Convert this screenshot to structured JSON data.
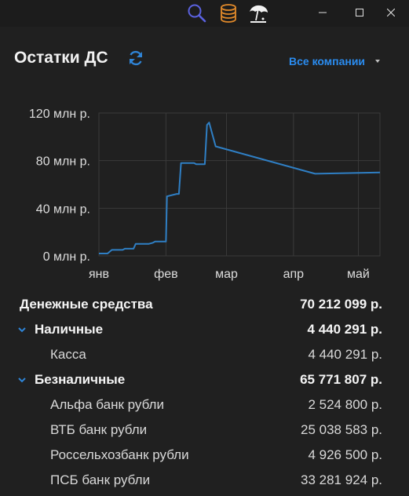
{
  "window": {
    "icons": [
      "search-icon",
      "database-icon",
      "beach-umbrella-icon"
    ],
    "controls": [
      "minimize-icon",
      "maximize-icon",
      "close-icon"
    ]
  },
  "header": {
    "title": "Остатки ДС",
    "company_filter": "Все компании"
  },
  "chart_data": {
    "type": "line",
    "ylim": [
      0,
      120
    ],
    "y_ticks": [
      "0 млн р.",
      "40 млн р.",
      "80 млн р.",
      "120 млн р."
    ],
    "y_tick_values": [
      0,
      40,
      80,
      120
    ],
    "x_ticks": [
      "янв",
      "фев",
      "мар",
      "апр",
      "май"
    ],
    "x_tick_values": [
      0,
      31,
      59,
      90,
      120
    ],
    "xlim": [
      0,
      130
    ],
    "grid": true,
    "color": "#2f7fc4",
    "series": [
      {
        "x": [
          0,
          3,
          4,
          6,
          7,
          11,
          12,
          13,
          16,
          17,
          22,
          23,
          25,
          26,
          29,
          30,
          31,
          31.5,
          36,
          37,
          38,
          39,
          40,
          44,
          45,
          46,
          47,
          48,
          49,
          50,
          51,
          54,
          100,
          130
        ],
        "y": [
          2,
          2,
          2,
          5,
          5,
          5,
          6,
          6,
          6,
          10,
          10,
          10,
          11,
          12,
          12,
          12,
          12,
          50,
          52,
          52,
          78,
          78,
          78,
          78,
          77,
          77,
          77,
          77,
          77,
          110,
          112,
          92,
          69,
          70
        ]
      }
    ]
  },
  "summary": {
    "total": {
      "label": "Денежные средства",
      "value": "70 212 099 р."
    },
    "cash": {
      "label": "Наличные",
      "value": "4 440 291 р."
    },
    "cash_items": [
      {
        "label": "Касса",
        "value": "4 440 291 р."
      }
    ],
    "noncash": {
      "label": "Безналичные",
      "value": "65 771 807 р."
    },
    "noncash_items": [
      {
        "label": "Альфа банк рубли",
        "value": "2 524 800 р."
      },
      {
        "label": "ВТБ банк рубли",
        "value": "25 038 583 р."
      },
      {
        "label": "Россельхозбанк рубли",
        "value": "4 926 500 р."
      },
      {
        "label": "ПСБ банк рубли",
        "value": "33 281 924 р."
      }
    ]
  }
}
